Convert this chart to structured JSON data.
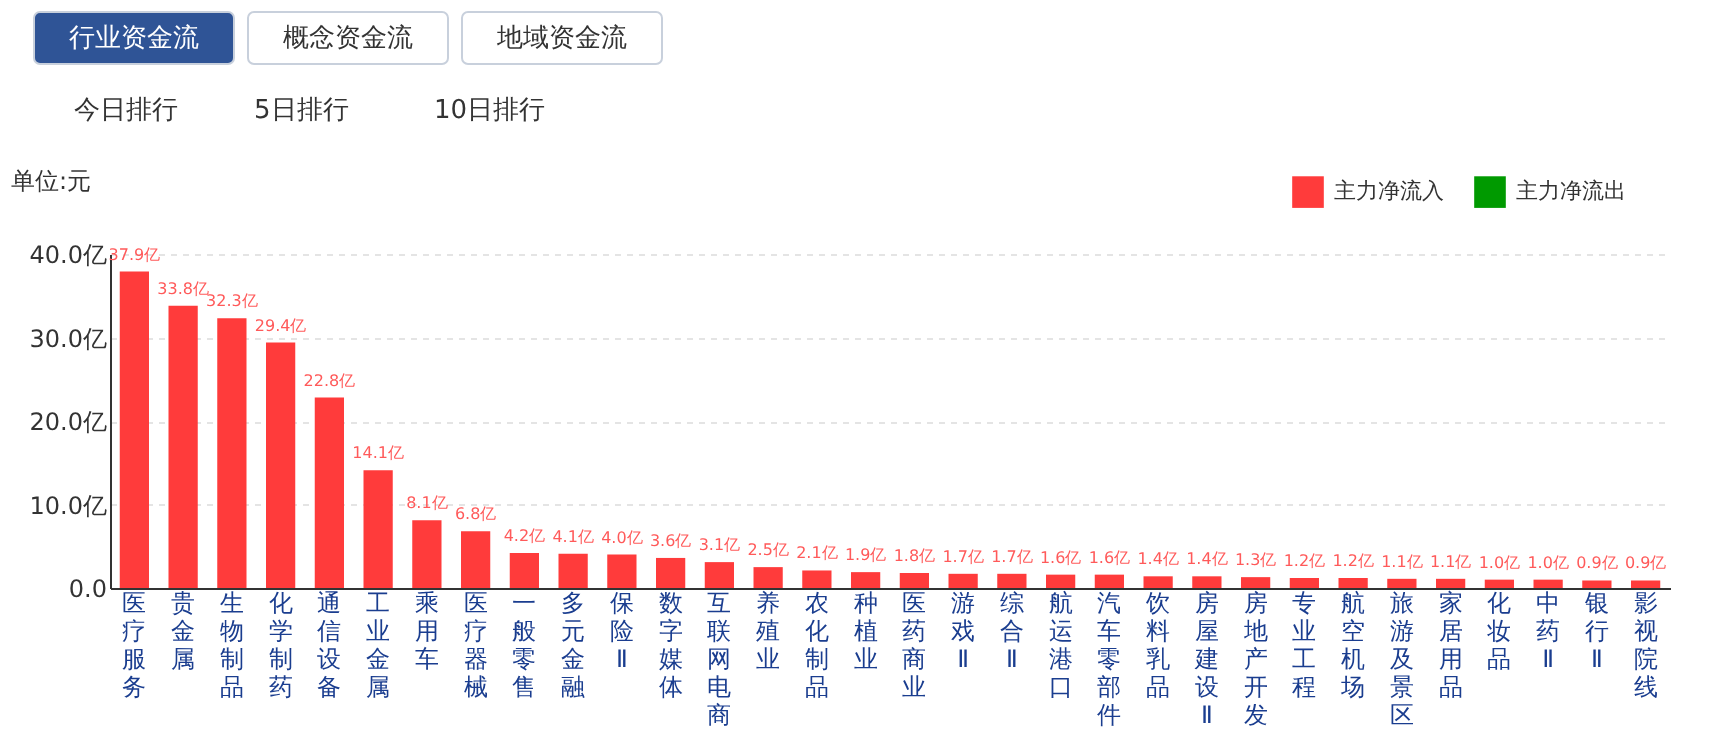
{
  "chart_data": {
    "type": "bar",
    "ylabel": "单位:元",
    "annotations": [
      "行业资金流",
      "概念资金流",
      "地域资金流",
      "今日排行",
      "5日排行",
      "10日排行"
    ],
    "categories": [
      "医疗服务",
      "贵金属",
      "生物制品",
      "化学制药",
      "通信设备",
      "工业金属",
      "乘用车",
      "医疗器械",
      "一般零售",
      "多元金融",
      "保险Ⅱ",
      "数字媒体",
      "互联网电商",
      "养殖业",
      "农化制品",
      "种植业",
      "医药商业",
      "游戏Ⅱ",
      "综合Ⅱ",
      "航运港口",
      "汽车零部件",
      "饮料乳品",
      "房屋建设Ⅱ",
      "房地产开发",
      "专业工程",
      "航空机场",
      "旅游及景区",
      "家居用品",
      "化妆品",
      "中药Ⅱ",
      "银行Ⅱ",
      "影视院线"
    ],
    "series": [
      {
        "name": "主力净流入",
        "color": "#ff3b3b",
        "values": [
          37.9,
          33.8,
          32.3,
          29.4,
          22.8,
          14.1,
          8.1,
          6.8,
          4.2,
          4.1,
          4.0,
          3.6,
          3.1,
          2.5,
          2.1,
          1.9,
          1.8,
          1.7,
          1.7,
          1.6,
          1.6,
          1.4,
          1.4,
          1.3,
          1.2,
          1.2,
          1.1,
          1.1,
          1.0,
          1.0,
          0.9,
          0.9
        ],
        "value_labels": [
          "37.9亿",
          "33.8亿",
          "32.3亿",
          "29.4亿",
          "22.8亿",
          "14.1亿",
          "8.1亿",
          "6.8亿",
          "4.2亿",
          "4.1亿",
          "4.0亿",
          "3.6亿",
          "3.1亿",
          "2.5亿",
          "2.1亿",
          "1.9亿",
          "1.8亿",
          "1.7亿",
          "1.7亿",
          "1.6亿",
          "1.6亿",
          "1.4亿",
          "1.4亿",
          "1.3亿",
          "1.2亿",
          "1.2亿",
          "1.1亿",
          "1.1亿",
          "1.0亿",
          "1.0亿",
          "0.9亿",
          "0.9亿"
        ]
      },
      {
        "name": "主力净流出",
        "color": "#009a00",
        "values": [
          null,
          null,
          null,
          null,
          null,
          null,
          null,
          null,
          null,
          null,
          null,
          null,
          null,
          null,
          null,
          null,
          null,
          null,
          null,
          null,
          null,
          null,
          null,
          null,
          null,
          null,
          null,
          null,
          null,
          null,
          null,
          null
        ]
      }
    ],
    "ylim": [
      0,
      40
    ],
    "yticks": [
      {
        "value": 0,
        "label": "0.0"
      },
      {
        "value": 10,
        "label": "10.0亿"
      },
      {
        "value": 20,
        "label": "20.0亿"
      },
      {
        "value": 30,
        "label": "30.0亿"
      },
      {
        "value": 40,
        "label": "40.0亿"
      }
    ],
    "grid": "y",
    "legend": "top right"
  }
}
